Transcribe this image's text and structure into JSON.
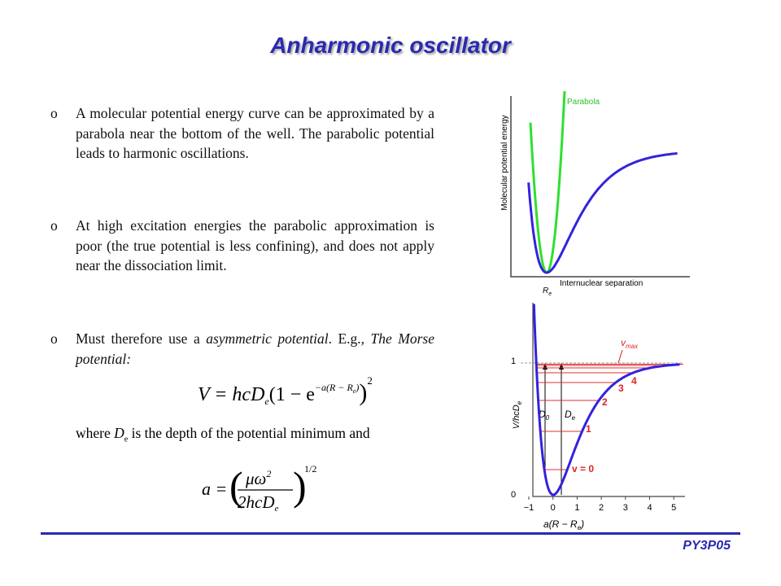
{
  "title": "Anharmonic oscillator",
  "bullet_marker": "o",
  "bullets": [
    [
      "A molecular potential energy curve can be approximated by a parabola near the bottom of the well. The parabolic potential leads to harmonic oscillations."
    ],
    [
      "At high excitation energies the parabolic approximation is poor (the true potential is less confining), and does not apply near the dissociation limit."
    ],
    [
      "Must therefore use a ",
      "asymmetric potential",
      ". E.g., ",
      "The Morse potential:"
    ]
  ],
  "formula_1": [
    "V = hcD",
    "e",
    "(1 − e",
    "−a(R − R",
    "e",
    ")",
    ")",
    "2"
  ],
  "where": [
    "where ",
    "D",
    "e",
    " is the depth of the potential minimum and"
  ],
  "formula_2": [
    "a =",
    "μω",
    "2",
    "2hcD",
    "e",
    "1/2"
  ],
  "figure_1": {
    "legend": "Parabola",
    "y_label": "Molecular potential energy",
    "x_label": "Internuclear separation",
    "x_mark": "R",
    "x_mark_sub": "e"
  },
  "figure_2": {
    "y_ticks": [
      "1",
      "0"
    ],
    "y_label": [
      "V/hcD",
      "e"
    ],
    "x_ticks": [
      "−1",
      "0",
      "1",
      "2",
      "3",
      "4",
      "5"
    ],
    "x_label": [
      "a(R − R",
      "e",
      ")"
    ],
    "vmax": [
      "v",
      "max"
    ],
    "d0": [
      "D",
      "0"
    ],
    "de": [
      "D",
      "e"
    ],
    "levels": [
      "v = 0",
      "1",
      "2",
      "3",
      "4"
    ]
  },
  "footer": "PY3P05"
}
